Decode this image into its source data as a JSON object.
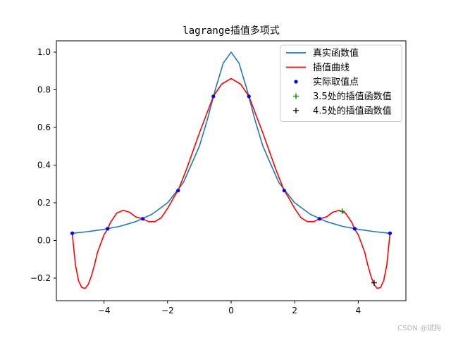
{
  "chart_data": {
    "type": "line",
    "title": "lagrange插值多项式",
    "xlim": [
      -5.5,
      5.5
    ],
    "ylim": [
      -0.32,
      1.06
    ],
    "xticks": [
      -4,
      -2,
      0,
      2,
      4
    ],
    "xtick_labels": [
      "−4",
      "−2",
      "0",
      "2",
      "4"
    ],
    "yticks": [
      -0.2,
      0.0,
      0.2,
      0.4,
      0.6,
      0.8,
      1.0
    ],
    "ytick_labels": [
      "−0.2",
      "0.0",
      "0.2",
      "0.4",
      "0.6",
      "0.8",
      "1.0"
    ],
    "grid": false,
    "legend_position": "top-right",
    "series": [
      {
        "name": "真实函数值",
        "kind": "line",
        "color": "#1f77b4",
        "x": [
          -5,
          -4.5,
          -4,
          -3.5,
          -3,
          -2.5,
          -2,
          -1.5,
          -1,
          -0.75,
          -0.5,
          -0.25,
          0,
          0.25,
          0.5,
          0.75,
          1,
          1.5,
          2,
          2.5,
          3,
          3.5,
          4,
          4.5,
          5
        ],
        "y": [
          0.038,
          0.047,
          0.059,
          0.075,
          0.1,
          0.138,
          0.2,
          0.308,
          0.5,
          0.64,
          0.8,
          0.941,
          1.0,
          0.941,
          0.8,
          0.64,
          0.5,
          0.308,
          0.2,
          0.138,
          0.1,
          0.075,
          0.059,
          0.047,
          0.038
        ]
      },
      {
        "name": "插值曲线",
        "kind": "line",
        "color": "#ff0000",
        "x": [
          -5,
          -4.9,
          -4.8,
          -4.7,
          -4.6,
          -4.5,
          -4.4,
          -4.3,
          -4.2,
          -4.0,
          -3.89,
          -3.8,
          -3.6,
          -3.4,
          -3.2,
          -3.0,
          -2.78,
          -2.6,
          -2.4,
          -2.2,
          -2.0,
          -1.8,
          -1.67,
          -1.4,
          -1.0,
          -0.56,
          -0.3,
          0,
          0.3,
          0.56,
          1.0,
          1.4,
          1.67,
          1.8,
          2.0,
          2.2,
          2.4,
          2.6,
          2.78,
          3.0,
          3.2,
          3.4,
          3.6,
          3.8,
          3.89,
          4.0,
          4.2,
          4.3,
          4.4,
          4.5,
          4.6,
          4.7,
          4.8,
          4.9,
          5
        ],
        "y": [
          0.038,
          -0.13,
          -0.215,
          -0.25,
          -0.255,
          -0.235,
          -0.19,
          -0.13,
          -0.06,
          0.03,
          0.06,
          0.095,
          0.145,
          0.16,
          0.15,
          0.125,
          0.115,
          0.1,
          0.1,
          0.12,
          0.17,
          0.23,
          0.265,
          0.38,
          0.57,
          0.765,
          0.83,
          0.86,
          0.83,
          0.765,
          0.57,
          0.38,
          0.265,
          0.23,
          0.17,
          0.12,
          0.1,
          0.1,
          0.115,
          0.125,
          0.15,
          0.16,
          0.145,
          0.095,
          0.06,
          0.03,
          -0.06,
          -0.13,
          -0.19,
          -0.235,
          -0.255,
          -0.25,
          -0.215,
          -0.13,
          0.038
        ]
      },
      {
        "name": "实际取值点",
        "kind": "points",
        "marker": "dot",
        "color": "#0000ff",
        "x": [
          -5,
          -3.89,
          -2.78,
          -1.67,
          -0.56,
          0.56,
          1.67,
          2.78,
          3.89,
          5
        ],
        "y": [
          0.038,
          0.062,
          0.115,
          0.265,
          0.765,
          0.765,
          0.265,
          0.115,
          0.062,
          0.038
        ]
      },
      {
        "name": "3.5处的插值函数值",
        "kind": "points",
        "marker": "plus",
        "color": "#008000",
        "x": [
          3.5
        ],
        "y": [
          0.155
        ]
      },
      {
        "name": "4.5处的插值函数值",
        "kind": "points",
        "marker": "plus",
        "color": "#000000",
        "x": [
          4.5
        ],
        "y": [
          -0.225
        ]
      }
    ]
  },
  "watermark": "CSDN @斌狗"
}
